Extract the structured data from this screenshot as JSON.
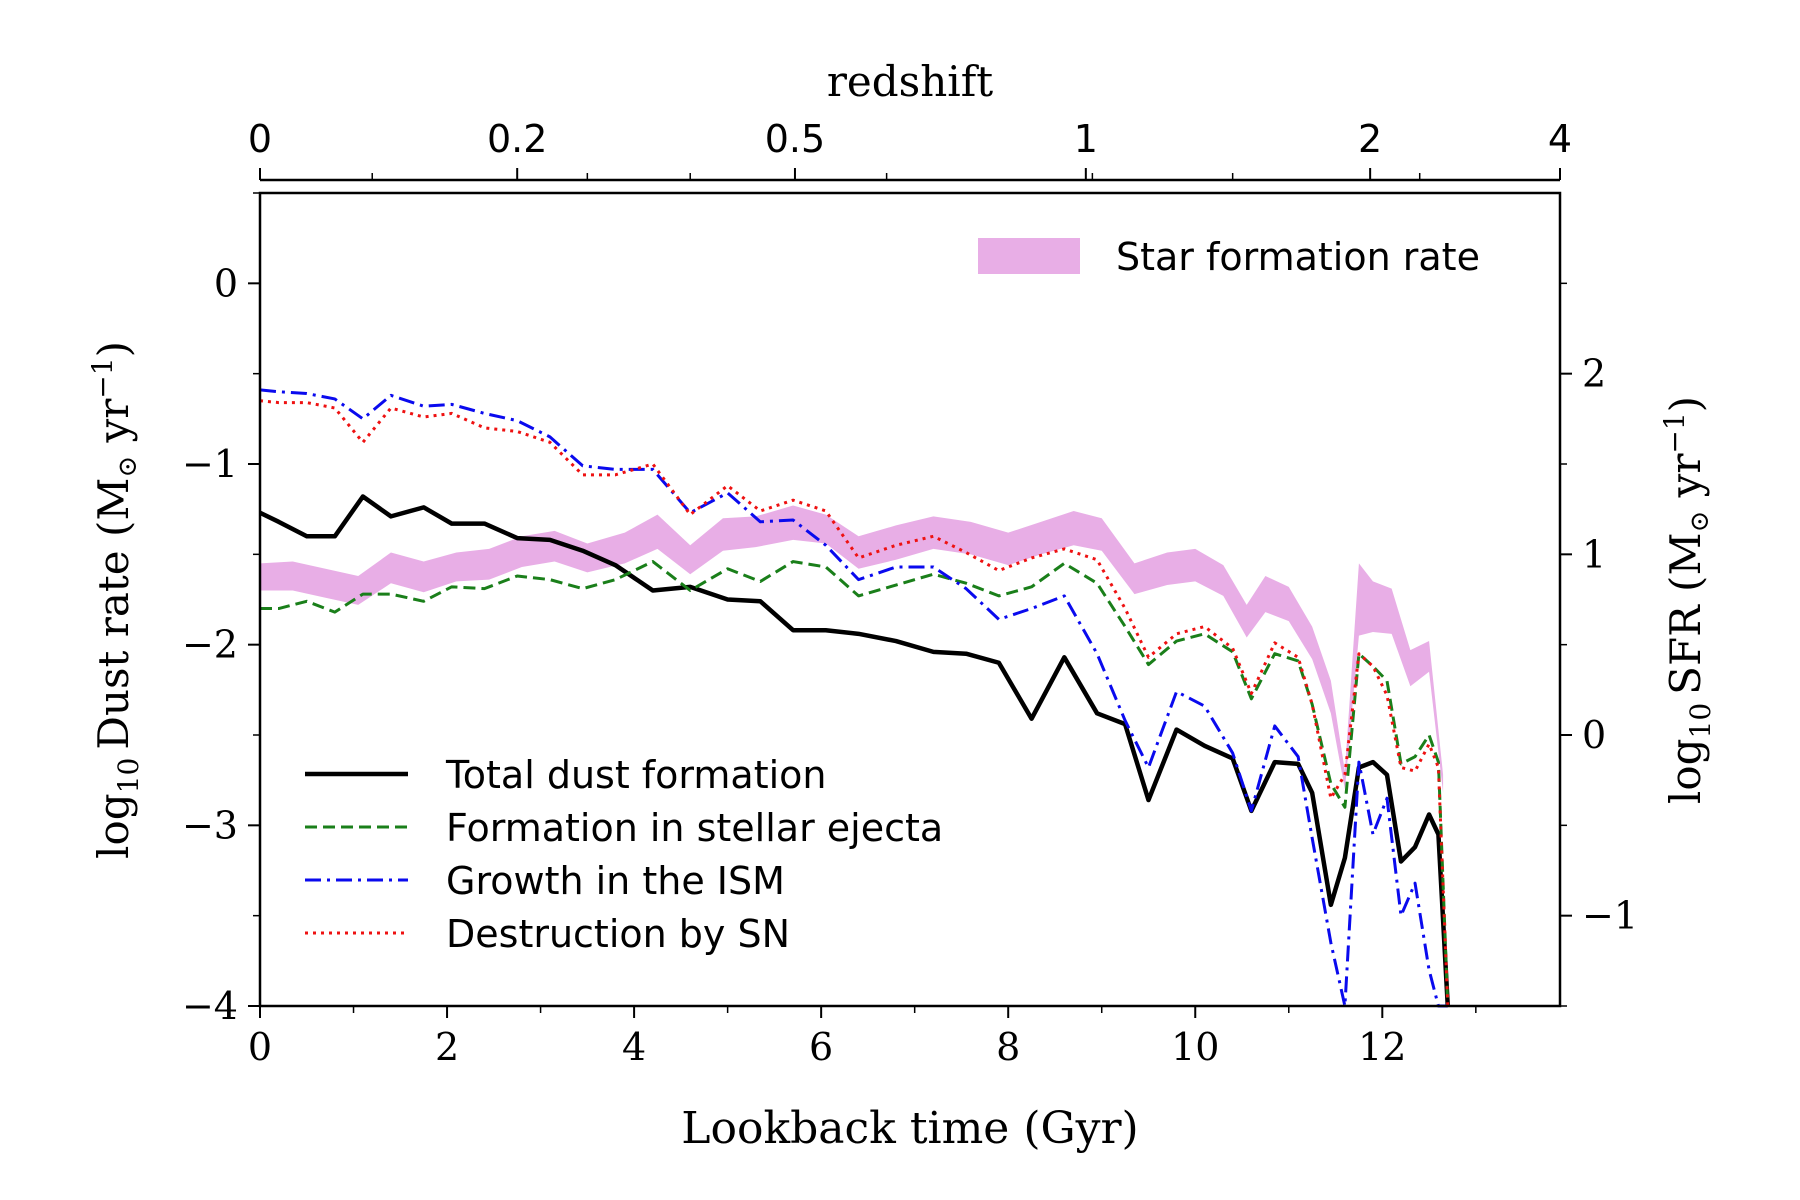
{
  "chart_data": {
    "type": "line",
    "xlabel": "Lookback time (Gyr)",
    "ylabel_left": {
      "base": "log",
      "sub": "10",
      "text": "Dust rate (M",
      "sun": "⊙",
      "unit": " yr",
      "exp": "−1",
      "close": ")"
    },
    "ylabel_right": {
      "base": "log",
      "sub": "10",
      "text": "SFR (M",
      "sun": "⊙",
      "unit": " yr",
      "exp": "−1",
      "close": ")"
    },
    "top_axis_label": "redshift",
    "xlim": [
      0,
      13.9
    ],
    "ylim_left": [
      -4,
      0.5
    ],
    "ylim_right": [
      -1.5,
      3.0
    ],
    "x_ticks": [
      0,
      2,
      4,
      6,
      8,
      10,
      12
    ],
    "x_tick_labels": [
      "0",
      "2",
      "4",
      "6",
      "8",
      "10",
      "12"
    ],
    "y_left_ticks": [
      0,
      -1,
      -2,
      -3,
      -4
    ],
    "y_left_tick_labels": [
      "0",
      "−1",
      "−2",
      "−3",
      "−4"
    ],
    "y_right_ticks": [
      2,
      1,
      0,
      -1
    ],
    "y_right_tick_labels": [
      "2",
      "1",
      "0",
      "−1"
    ],
    "top_ticks": [
      {
        "label": "0",
        "x": 0.0
      },
      {
        "label": "0.2",
        "x": 2.75
      },
      {
        "label": "0.5",
        "x": 5.72
      },
      {
        "label": "1",
        "x": 8.83
      },
      {
        "label": "2",
        "x": 11.87
      },
      {
        "label": "4",
        "x": 13.9
      }
    ],
    "top_minor_ticks": [
      1.2,
      3.5,
      4.6,
      6.7,
      8.9,
      10.4,
      12.4
    ],
    "legend_sfr": "Star formation rate",
    "series": [
      {
        "name": "Total dust formation",
        "color": "#000000",
        "style": "solid",
        "x": [
          0,
          0.2,
          0.5,
          0.8,
          1.1,
          1.4,
          1.75,
          2.05,
          2.4,
          2.75,
          3.1,
          3.45,
          3.8,
          4.2,
          4.6,
          5.0,
          5.35,
          5.7,
          6.05,
          6.4,
          6.8,
          7.2,
          7.55,
          7.9,
          8.25,
          8.6,
          8.95,
          9.25,
          9.5,
          9.8,
          10.1,
          10.4,
          10.6,
          10.85,
          11.1,
          11.25,
          11.45,
          11.6,
          11.75,
          11.9,
          12.05,
          12.2,
          12.35,
          12.5,
          12.6,
          12.7
        ],
        "values": [
          -1.27,
          -1.32,
          -1.4,
          -1.4,
          -1.18,
          -1.29,
          -1.24,
          -1.33,
          -1.33,
          -1.41,
          -1.42,
          -1.48,
          -1.56,
          -1.7,
          -1.68,
          -1.75,
          -1.76,
          -1.92,
          -1.92,
          -1.94,
          -1.98,
          -2.04,
          -2.05,
          -2.1,
          -2.41,
          -2.07,
          -2.38,
          -2.44,
          -2.86,
          -2.47,
          -2.56,
          -2.63,
          -2.92,
          -2.65,
          -2.66,
          -2.82,
          -3.44,
          -3.18,
          -2.68,
          -2.65,
          -2.72,
          -3.2,
          -3.12,
          -2.94,
          -3.05,
          -4.0
        ]
      },
      {
        "name": "Formation in stellar ejecta",
        "color": "#1a7f1a",
        "style": "dashed",
        "x": [
          0,
          0.2,
          0.5,
          0.8,
          1.1,
          1.4,
          1.75,
          2.05,
          2.4,
          2.75,
          3.1,
          3.45,
          3.8,
          4.2,
          4.6,
          5.0,
          5.35,
          5.7,
          6.05,
          6.4,
          6.8,
          7.2,
          7.55,
          7.9,
          8.25,
          8.6,
          8.95,
          9.25,
          9.5,
          9.8,
          10.1,
          10.4,
          10.6,
          10.85,
          11.1,
          11.25,
          11.45,
          11.6,
          11.75,
          11.9,
          12.05,
          12.2,
          12.35,
          12.5,
          12.6,
          12.7
        ],
        "values": [
          -1.8,
          -1.8,
          -1.76,
          -1.82,
          -1.72,
          -1.72,
          -1.76,
          -1.68,
          -1.69,
          -1.62,
          -1.64,
          -1.69,
          -1.64,
          -1.54,
          -1.7,
          -1.58,
          -1.65,
          -1.54,
          -1.57,
          -1.73,
          -1.67,
          -1.61,
          -1.66,
          -1.73,
          -1.68,
          -1.55,
          -1.66,
          -1.9,
          -2.11,
          -1.98,
          -1.94,
          -2.04,
          -2.3,
          -2.05,
          -2.09,
          -2.33,
          -2.77,
          -2.9,
          -2.05,
          -2.12,
          -2.2,
          -2.66,
          -2.62,
          -2.5,
          -2.65,
          -4.0
        ]
      },
      {
        "name": "Growth in the ISM",
        "color": "#0a0aee",
        "style": "dashdot",
        "x": [
          0,
          0.2,
          0.5,
          0.8,
          1.1,
          1.4,
          1.75,
          2.05,
          2.4,
          2.75,
          3.1,
          3.45,
          3.8,
          4.2,
          4.6,
          5.0,
          5.35,
          5.7,
          6.05,
          6.4,
          6.8,
          7.2,
          7.55,
          7.9,
          8.25,
          8.6,
          8.95,
          9.25,
          9.5,
          9.8,
          10.1,
          10.4,
          10.6,
          10.85,
          11.1,
          11.25,
          11.45,
          11.6,
          11.75,
          11.9,
          12.05,
          12.2,
          12.35,
          12.5,
          12.6,
          12.7
        ],
        "values": [
          -0.59,
          -0.6,
          -0.61,
          -0.64,
          -0.75,
          -0.62,
          -0.68,
          -0.67,
          -0.72,
          -0.76,
          -0.85,
          -1.01,
          -1.03,
          -1.03,
          -1.27,
          -1.16,
          -1.32,
          -1.31,
          -1.45,
          -1.64,
          -1.57,
          -1.57,
          -1.69,
          -1.86,
          -1.8,
          -1.73,
          -2.05,
          -2.42,
          -2.68,
          -2.26,
          -2.34,
          -2.6,
          -2.92,
          -2.45,
          -2.62,
          -3.07,
          -3.65,
          -4.0,
          -2.65,
          -3.05,
          -2.85,
          -3.5,
          -3.32,
          -3.8,
          -4.0,
          -4.0
        ]
      },
      {
        "name": "Destruction by SN",
        "color": "#ee1111",
        "style": "dotted",
        "x": [
          0,
          0.2,
          0.5,
          0.8,
          1.1,
          1.4,
          1.75,
          2.05,
          2.4,
          2.75,
          3.1,
          3.45,
          3.8,
          4.2,
          4.6,
          5.0,
          5.35,
          5.7,
          6.05,
          6.4,
          6.8,
          7.2,
          7.55,
          7.9,
          8.25,
          8.6,
          8.95,
          9.25,
          9.5,
          9.8,
          10.1,
          10.4,
          10.6,
          10.85,
          11.1,
          11.25,
          11.45,
          11.6,
          11.75,
          11.9,
          12.05,
          12.2,
          12.35,
          12.5,
          12.6,
          12.7
        ],
        "values": [
          -0.65,
          -0.66,
          -0.66,
          -0.69,
          -0.88,
          -0.69,
          -0.74,
          -0.72,
          -0.8,
          -0.82,
          -0.88,
          -1.06,
          -1.06,
          -1.0,
          -1.28,
          -1.12,
          -1.26,
          -1.2,
          -1.26,
          -1.52,
          -1.45,
          -1.4,
          -1.49,
          -1.59,
          -1.52,
          -1.47,
          -1.53,
          -1.8,
          -2.07,
          -1.94,
          -1.9,
          -2.02,
          -2.27,
          -1.99,
          -2.07,
          -2.33,
          -2.85,
          -2.72,
          -2.05,
          -2.12,
          -2.28,
          -2.68,
          -2.7,
          -2.55,
          -2.68,
          -4.0
        ]
      }
    ],
    "sfr_band": {
      "name": "Star formation rate",
      "color": "#e8aee6",
      "x": [
        0,
        0.35,
        0.7,
        1.05,
        1.4,
        1.75,
        2.1,
        2.45,
        2.8,
        3.15,
        3.5,
        3.9,
        4.25,
        4.6,
        4.95,
        5.3,
        5.7,
        6.05,
        6.4,
        6.8,
        7.2,
        7.6,
        8.0,
        8.35,
        8.7,
        9.0,
        9.35,
        9.7,
        10.0,
        10.3,
        10.55,
        10.75,
        11.0,
        11.25,
        11.45,
        11.6,
        11.75,
        11.9,
        12.1,
        12.3,
        12.5,
        12.65
      ],
      "lower": [
        0.8,
        0.8,
        0.76,
        0.72,
        0.84,
        0.79,
        0.85,
        0.86,
        0.93,
        0.96,
        0.9,
        0.95,
        1.03,
        0.89,
        1.02,
        1.04,
        1.08,
        1.06,
        0.92,
        0.97,
        1.03,
        1.0,
        0.94,
        1.0,
        1.05,
        1.02,
        0.78,
        0.83,
        0.85,
        0.77,
        0.54,
        0.68,
        0.63,
        0.42,
        0.12,
        -0.3,
        0.55,
        0.57,
        0.56,
        0.27,
        0.35,
        -0.32
      ],
      "upper": [
        0.95,
        0.96,
        0.92,
        0.88,
        1.01,
        0.96,
        1.01,
        1.03,
        1.1,
        1.13,
        1.06,
        1.12,
        1.22,
        1.05,
        1.2,
        1.21,
        1.27,
        1.22,
        1.1,
        1.16,
        1.21,
        1.18,
        1.12,
        1.18,
        1.24,
        1.2,
        0.95,
        1.01,
        1.03,
        0.94,
        0.72,
        0.88,
        0.82,
        0.6,
        0.3,
        -0.2,
        0.95,
        0.85,
        0.81,
        0.47,
        0.52,
        -0.22
      ]
    }
  }
}
